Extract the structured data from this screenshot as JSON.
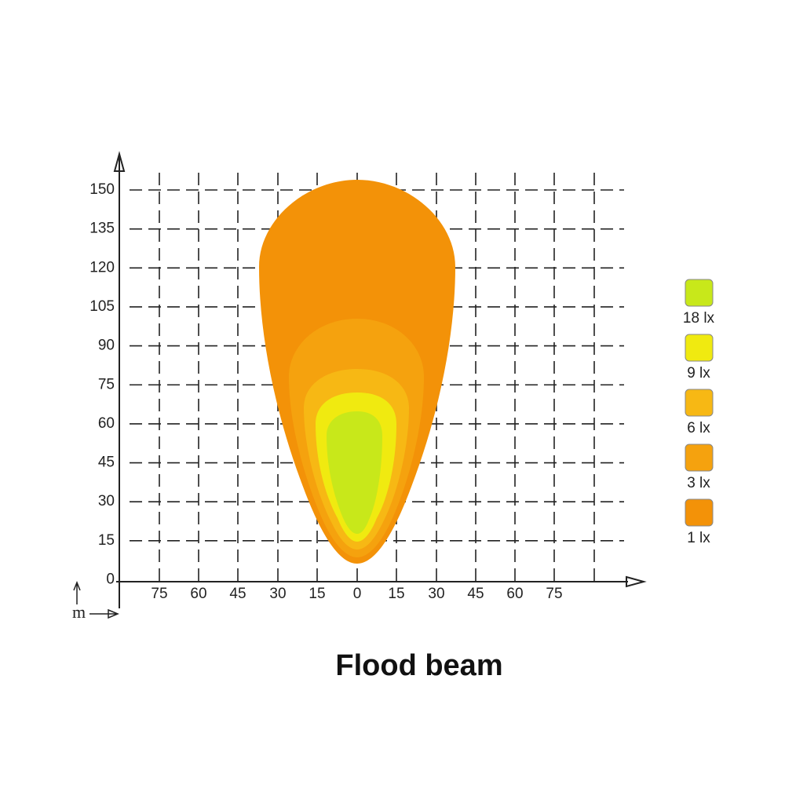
{
  "y_axis": {
    "ticks": [
      "150",
      "135",
      "120",
      "105",
      "90",
      "75",
      "60",
      "45",
      "30",
      "15",
      "0"
    ]
  },
  "x_axis": {
    "ticks": [
      "75",
      "60",
      "45",
      "30",
      "15",
      "0",
      "15",
      "30",
      "45",
      "60",
      "75"
    ]
  },
  "unit": "m",
  "legend": [
    "18 lx",
    "9 lx",
    "6 lx",
    "3 lx",
    "1 lx"
  ],
  "title": "Flood beam"
}
